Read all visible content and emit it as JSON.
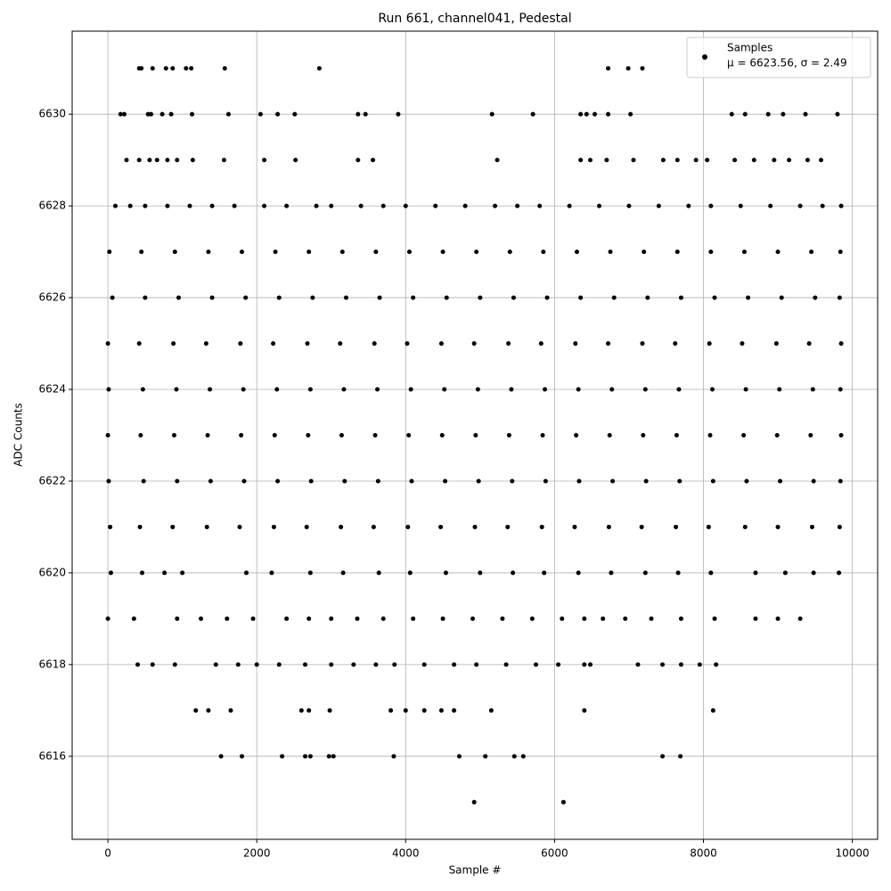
{
  "chart_data": {
    "type": "scatter",
    "title": "Run 661, channel041, Pedestal",
    "x_label": "Sample #",
    "y_label": "ADC Counts",
    "xlim": [
      -480,
      10340
    ],
    "ylim": [
      6614.19,
      6631.81
    ],
    "xticks": [
      0,
      2000,
      4000,
      6000,
      8000,
      10000
    ],
    "yticks": [
      6616,
      6618,
      6620,
      6622,
      6624,
      6626,
      6628,
      6630
    ],
    "grid": true,
    "legend": "upper right",
    "legend_note": "μ = 6623.56, σ = 2.49",
    "series": [
      {
        "name": "Samples",
        "color": "#000000",
        "x": [
          420,
          450,
          600,
          780,
          870,
          1050,
          1120,
          1570,
          2840,
          6720,
          6990,
          7180,
          170,
          220,
          540,
          580,
          730,
          850,
          1130,
          1620,
          2050,
          2280,
          2510,
          3360,
          3460,
          3900,
          5160,
          5710,
          6350,
          6430,
          6540,
          6720,
          7020,
          8380,
          8560,
          8870,
          9070,
          9370,
          9800,
          250,
          420,
          560,
          660,
          800,
          930,
          1140,
          1560,
          2100,
          2520,
          3360,
          3560,
          5230,
          6350,
          6480,
          6700,
          7060,
          7460,
          7650,
          7900,
          8050,
          8420,
          8680,
          8950,
          9150,
          9400,
          9580,
          100,
          300,
          500,
          800,
          1100,
          1400,
          1700,
          2100,
          2400,
          2800,
          3000,
          3400,
          3700,
          4000,
          4400,
          4800,
          5200,
          5500,
          5800,
          6200,
          6600,
          7000,
          7400,
          7800,
          8100,
          8500,
          8900,
          9300,
          9600,
          9850,
          20,
          450,
          900,
          1350,
          1800,
          2250,
          2700,
          3150,
          3600,
          4050,
          4500,
          4950,
          5400,
          5850,
          6300,
          6750,
          7200,
          7650,
          8100,
          8550,
          9000,
          9450,
          9840,
          60,
          500,
          950,
          1400,
          1850,
          2300,
          2750,
          3200,
          3650,
          4100,
          4550,
          5000,
          5450,
          5900,
          6350,
          6800,
          7250,
          7700,
          8150,
          8600,
          9050,
          9500,
          9830,
          0,
          420,
          880,
          1320,
          1780,
          2220,
          2680,
          3120,
          3580,
          4020,
          4480,
          4920,
          5380,
          5820,
          6280,
          6720,
          7180,
          7620,
          8080,
          8520,
          8980,
          9420,
          9850,
          10,
          470,
          920,
          1370,
          1820,
          2270,
          2720,
          3170,
          3620,
          4070,
          4520,
          4970,
          5420,
          5870,
          6320,
          6770,
          7220,
          7670,
          8120,
          8570,
          9020,
          9470,
          9840,
          0,
          440,
          890,
          1340,
          1790,
          2240,
          2690,
          3140,
          3590,
          4040,
          4490,
          4940,
          5390,
          5840,
          6290,
          6740,
          7190,
          7640,
          8090,
          8540,
          8990,
          9440,
          9850,
          10,
          480,
          930,
          1380,
          1830,
          2280,
          2730,
          3180,
          3630,
          4080,
          4530,
          4980,
          5430,
          5880,
          6330,
          6780,
          7230,
          7680,
          8130,
          8580,
          9030,
          9480,
          9840,
          30,
          430,
          870,
          1330,
          1770,
          2230,
          2670,
          3130,
          3570,
          4030,
          4470,
          4930,
          5370,
          5830,
          6270,
          6730,
          7170,
          7630,
          8070,
          8560,
          9000,
          9460,
          9830,
          40,
          460,
          760,
          1000,
          1860,
          2200,
          2720,
          3160,
          3640,
          4060,
          4540,
          5000,
          5440,
          5860,
          6320,
          6760,
          7220,
          7660,
          8100,
          8700,
          9100,
          9480,
          9820,
          0,
          350,
          930,
          1250,
          1600,
          1950,
          2400,
          2700,
          3000,
          3350,
          3700,
          4100,
          4500,
          4900,
          5300,
          5700,
          6100,
          6400,
          6650,
          6950,
          7300,
          7700,
          8150,
          8700,
          9000,
          9300,
          400,
          600,
          900,
          1450,
          1750,
          2000,
          2300,
          2650,
          3000,
          3300,
          3600,
          3850,
          4250,
          4650,
          4950,
          5350,
          5750,
          6050,
          6400,
          6480,
          7120,
          7450,
          7700,
          7950,
          8170,
          1180,
          1350,
          1650,
          2600,
          2700,
          2980,
          3800,
          4000,
          4250,
          4480,
          4650,
          5150,
          6400,
          8130,
          1520,
          1800,
          2340,
          2650,
          2720,
          2970,
          3030,
          3840,
          4720,
          5070,
          5460,
          5580,
          7450,
          7690,
          4920,
          6120
        ],
        "values": [
          6631,
          6631,
          6631,
          6631,
          6631,
          6631,
          6631,
          6631,
          6631,
          6631,
          6631,
          6631,
          6630,
          6630,
          6630,
          6630,
          6630,
          6630,
          6630,
          6630,
          6630,
          6630,
          6630,
          6630,
          6630,
          6630,
          6630,
          6630,
          6630,
          6630,
          6630,
          6630,
          6630,
          6630,
          6630,
          6630,
          6630,
          6630,
          6630,
          6629,
          6629,
          6629,
          6629,
          6629,
          6629,
          6629,
          6629,
          6629,
          6629,
          6629,
          6629,
          6629,
          6629,
          6629,
          6629,
          6629,
          6629,
          6629,
          6629,
          6629,
          6629,
          6629,
          6629,
          6629,
          6629,
          6629,
          6628,
          6628,
          6628,
          6628,
          6628,
          6628,
          6628,
          6628,
          6628,
          6628,
          6628,
          6628,
          6628,
          6628,
          6628,
          6628,
          6628,
          6628,
          6628,
          6628,
          6628,
          6628,
          6628,
          6628,
          6628,
          6628,
          6628,
          6628,
          6628,
          6628,
          6627,
          6627,
          6627,
          6627,
          6627,
          6627,
          6627,
          6627,
          6627,
          6627,
          6627,
          6627,
          6627,
          6627,
          6627,
          6627,
          6627,
          6627,
          6627,
          6627,
          6627,
          6627,
          6627,
          6626,
          6626,
          6626,
          6626,
          6626,
          6626,
          6626,
          6626,
          6626,
          6626,
          6626,
          6626,
          6626,
          6626,
          6626,
          6626,
          6626,
          6626,
          6626,
          6626,
          6626,
          6626,
          6626,
          6625,
          6625,
          6625,
          6625,
          6625,
          6625,
          6625,
          6625,
          6625,
          6625,
          6625,
          6625,
          6625,
          6625,
          6625,
          6625,
          6625,
          6625,
          6625,
          6625,
          6625,
          6625,
          6625,
          6624,
          6624,
          6624,
          6624,
          6624,
          6624,
          6624,
          6624,
          6624,
          6624,
          6624,
          6624,
          6624,
          6624,
          6624,
          6624,
          6624,
          6624,
          6624,
          6624,
          6624,
          6624,
          6624,
          6623,
          6623,
          6623,
          6623,
          6623,
          6623,
          6623,
          6623,
          6623,
          6623,
          6623,
          6623,
          6623,
          6623,
          6623,
          6623,
          6623,
          6623,
          6623,
          6623,
          6623,
          6623,
          6623,
          6622,
          6622,
          6622,
          6622,
          6622,
          6622,
          6622,
          6622,
          6622,
          6622,
          6622,
          6622,
          6622,
          6622,
          6622,
          6622,
          6622,
          6622,
          6622,
          6622,
          6622,
          6622,
          6622,
          6621,
          6621,
          6621,
          6621,
          6621,
          6621,
          6621,
          6621,
          6621,
          6621,
          6621,
          6621,
          6621,
          6621,
          6621,
          6621,
          6621,
          6621,
          6621,
          6621,
          6621,
          6621,
          6621,
          6620,
          6620,
          6620,
          6620,
          6620,
          6620,
          6620,
          6620,
          6620,
          6620,
          6620,
          6620,
          6620,
          6620,
          6620,
          6620,
          6620,
          6620,
          6620,
          6620,
          6620,
          6620,
          6620,
          6619,
          6619,
          6619,
          6619,
          6619,
          6619,
          6619,
          6619,
          6619,
          6619,
          6619,
          6619,
          6619,
          6619,
          6619,
          6619,
          6619,
          6619,
          6619,
          6619,
          6619,
          6619,
          6619,
          6619,
          6619,
          6619,
          6618,
          6618,
          6618,
          6618,
          6618,
          6618,
          6618,
          6618,
          6618,
          6618,
          6618,
          6618,
          6618,
          6618,
          6618,
          6618,
          6618,
          6618,
          6618,
          6618,
          6618,
          6618,
          6618,
          6618,
          6618,
          6617,
          6617,
          6617,
          6617,
          6617,
          6617,
          6617,
          6617,
          6617,
          6617,
          6617,
          6617,
          6617,
          6617,
          6616,
          6616,
          6616,
          6616,
          6616,
          6616,
          6616,
          6616,
          6616,
          6616,
          6616,
          6616,
          6616,
          6616,
          6615,
          6615
        ]
      }
    ]
  }
}
